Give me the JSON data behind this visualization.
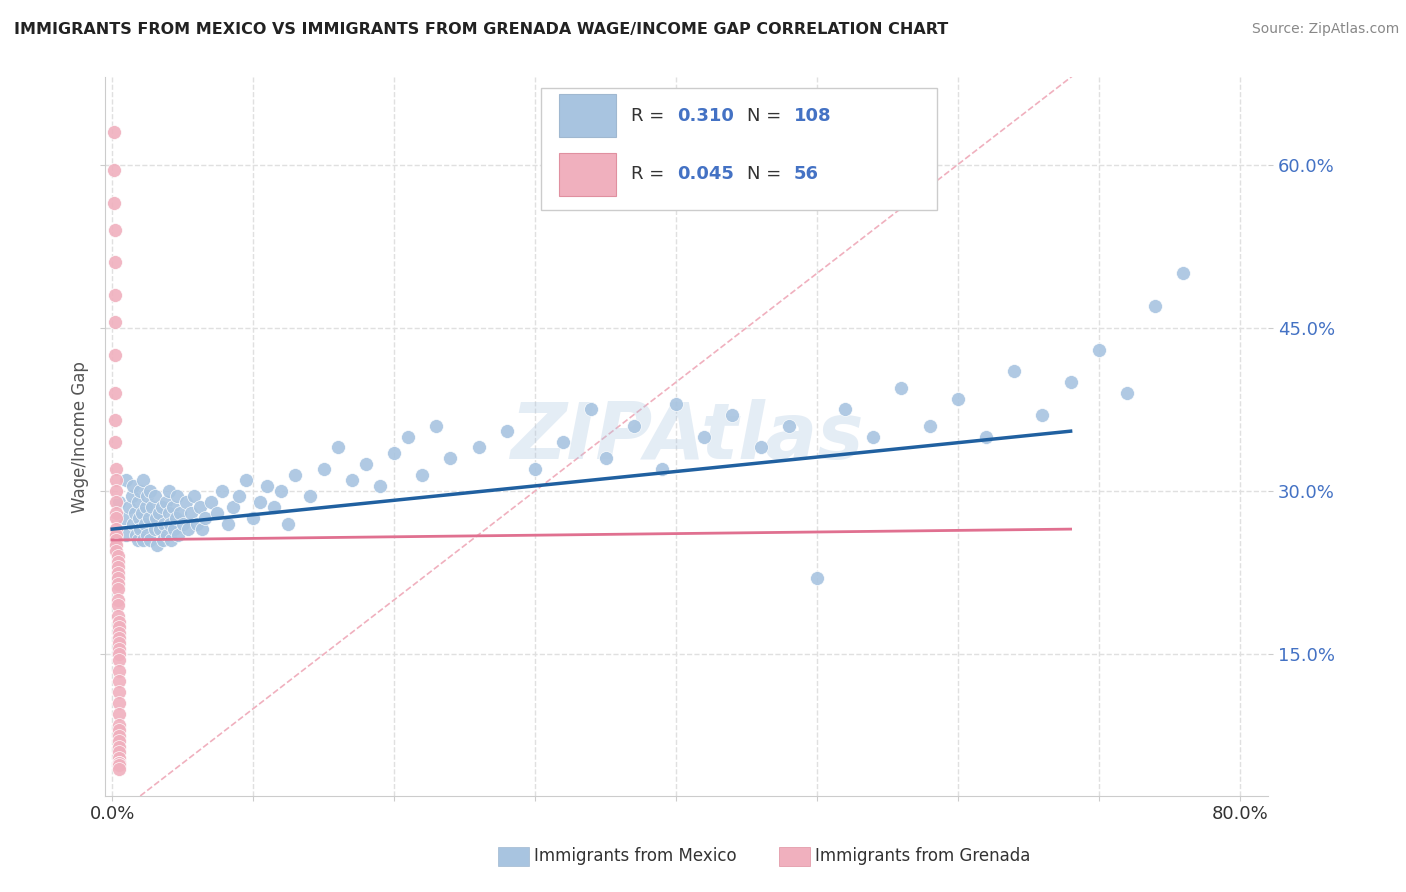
{
  "title": "IMMIGRANTS FROM MEXICO VS IMMIGRANTS FROM GRENADA WAGE/INCOME GAP CORRELATION CHART",
  "source": "Source: ZipAtlas.com",
  "ylabel": "Wage/Income Gap",
  "xlim": [
    -0.005,
    0.82
  ],
  "ylim": [
    0.02,
    0.68
  ],
  "xtick_vals": [
    0.0,
    0.1,
    0.2,
    0.3,
    0.4,
    0.5,
    0.6,
    0.7,
    0.8
  ],
  "ytick_positions": [
    0.15,
    0.3,
    0.45,
    0.6
  ],
  "ytick_labels": [
    "15.0%",
    "30.0%",
    "45.0%",
    "60.0%"
  ],
  "mexico_color": "#a8c4e0",
  "grenada_color": "#f0b0be",
  "mexico_line_color": "#2060a0",
  "grenada_line_color": "#e07090",
  "diag_line_color": "#f0b0be",
  "R_mexico": 0.31,
  "N_mexico": 108,
  "R_grenada": 0.045,
  "N_grenada": 56,
  "legend_label_mexico": "Immigrants from Mexico",
  "legend_label_grenada": "Immigrants from Grenada",
  "watermark": "ZIPAtlas",
  "background_color": "#ffffff",
  "grid_color": "#e0e0e0",
  "mexico_line_x0": 0.0,
  "mexico_line_y0": 0.265,
  "mexico_line_x1": 0.68,
  "mexico_line_y1": 0.355,
  "grenada_line_x0": 0.0,
  "grenada_line_y0": 0.255,
  "grenada_line_x1": 0.68,
  "grenada_line_y1": 0.265,
  "mexico_scatter_x": [
    0.005,
    0.008,
    0.01,
    0.01,
    0.012,
    0.014,
    0.015,
    0.015,
    0.016,
    0.017,
    0.018,
    0.018,
    0.019,
    0.02,
    0.02,
    0.021,
    0.022,
    0.022,
    0.023,
    0.024,
    0.025,
    0.025,
    0.026,
    0.027,
    0.027,
    0.028,
    0.03,
    0.03,
    0.031,
    0.032,
    0.033,
    0.034,
    0.035,
    0.036,
    0.037,
    0.038,
    0.039,
    0.04,
    0.04,
    0.041,
    0.042,
    0.043,
    0.044,
    0.045,
    0.046,
    0.047,
    0.048,
    0.05,
    0.052,
    0.054,
    0.056,
    0.058,
    0.06,
    0.062,
    0.064,
    0.066,
    0.07,
    0.074,
    0.078,
    0.082,
    0.086,
    0.09,
    0.095,
    0.1,
    0.105,
    0.11,
    0.115,
    0.12,
    0.125,
    0.13,
    0.14,
    0.15,
    0.16,
    0.17,
    0.18,
    0.19,
    0.2,
    0.21,
    0.22,
    0.23,
    0.24,
    0.26,
    0.28,
    0.3,
    0.32,
    0.34,
    0.35,
    0.37,
    0.39,
    0.4,
    0.42,
    0.44,
    0.46,
    0.48,
    0.5,
    0.52,
    0.54,
    0.56,
    0.58,
    0.6,
    0.62,
    0.64,
    0.66,
    0.68,
    0.7,
    0.72,
    0.74,
    0.76
  ],
  "mexico_scatter_y": [
    0.29,
    0.275,
    0.31,
    0.26,
    0.285,
    0.295,
    0.27,
    0.305,
    0.28,
    0.26,
    0.29,
    0.255,
    0.275,
    0.3,
    0.265,
    0.28,
    0.31,
    0.255,
    0.27,
    0.285,
    0.295,
    0.26,
    0.275,
    0.3,
    0.255,
    0.285,
    0.265,
    0.295,
    0.275,
    0.25,
    0.28,
    0.265,
    0.285,
    0.255,
    0.27,
    0.29,
    0.26,
    0.28,
    0.3,
    0.27,
    0.255,
    0.285,
    0.265,
    0.275,
    0.295,
    0.26,
    0.28,
    0.27,
    0.29,
    0.265,
    0.28,
    0.295,
    0.27,
    0.285,
    0.265,
    0.275,
    0.29,
    0.28,
    0.3,
    0.27,
    0.285,
    0.295,
    0.31,
    0.275,
    0.29,
    0.305,
    0.285,
    0.3,
    0.27,
    0.315,
    0.295,
    0.32,
    0.34,
    0.31,
    0.325,
    0.305,
    0.335,
    0.35,
    0.315,
    0.36,
    0.33,
    0.34,
    0.355,
    0.32,
    0.345,
    0.375,
    0.33,
    0.36,
    0.32,
    0.38,
    0.35,
    0.37,
    0.34,
    0.36,
    0.22,
    0.375,
    0.35,
    0.395,
    0.36,
    0.385,
    0.35,
    0.41,
    0.37,
    0.4,
    0.43,
    0.39,
    0.47,
    0.5
  ],
  "grenada_scatter_x": [
    0.001,
    0.001,
    0.001,
    0.002,
    0.002,
    0.002,
    0.002,
    0.002,
    0.002,
    0.002,
    0.002,
    0.003,
    0.003,
    0.003,
    0.003,
    0.003,
    0.003,
    0.003,
    0.003,
    0.003,
    0.003,
    0.003,
    0.004,
    0.004,
    0.004,
    0.004,
    0.004,
    0.004,
    0.004,
    0.004,
    0.004,
    0.004,
    0.005,
    0.005,
    0.005,
    0.005,
    0.005,
    0.005,
    0.005,
    0.005,
    0.005,
    0.005,
    0.005,
    0.005,
    0.005,
    0.005,
    0.005,
    0.005,
    0.005,
    0.005,
    0.005,
    0.005,
    0.005,
    0.005,
    0.005,
    0.005
  ],
  "grenada_scatter_y": [
    0.63,
    0.595,
    0.565,
    0.54,
    0.51,
    0.48,
    0.455,
    0.425,
    0.39,
    0.365,
    0.345,
    0.32,
    0.31,
    0.3,
    0.29,
    0.28,
    0.275,
    0.265,
    0.26,
    0.255,
    0.25,
    0.245,
    0.24,
    0.235,
    0.23,
    0.225,
    0.22,
    0.215,
    0.21,
    0.2,
    0.195,
    0.185,
    0.18,
    0.175,
    0.17,
    0.165,
    0.16,
    0.155,
    0.15,
    0.145,
    0.135,
    0.125,
    0.115,
    0.105,
    0.095,
    0.085,
    0.08,
    0.075,
    0.07,
    0.065,
    0.06,
    0.055,
    0.05,
    0.05,
    0.048,
    0.045
  ]
}
